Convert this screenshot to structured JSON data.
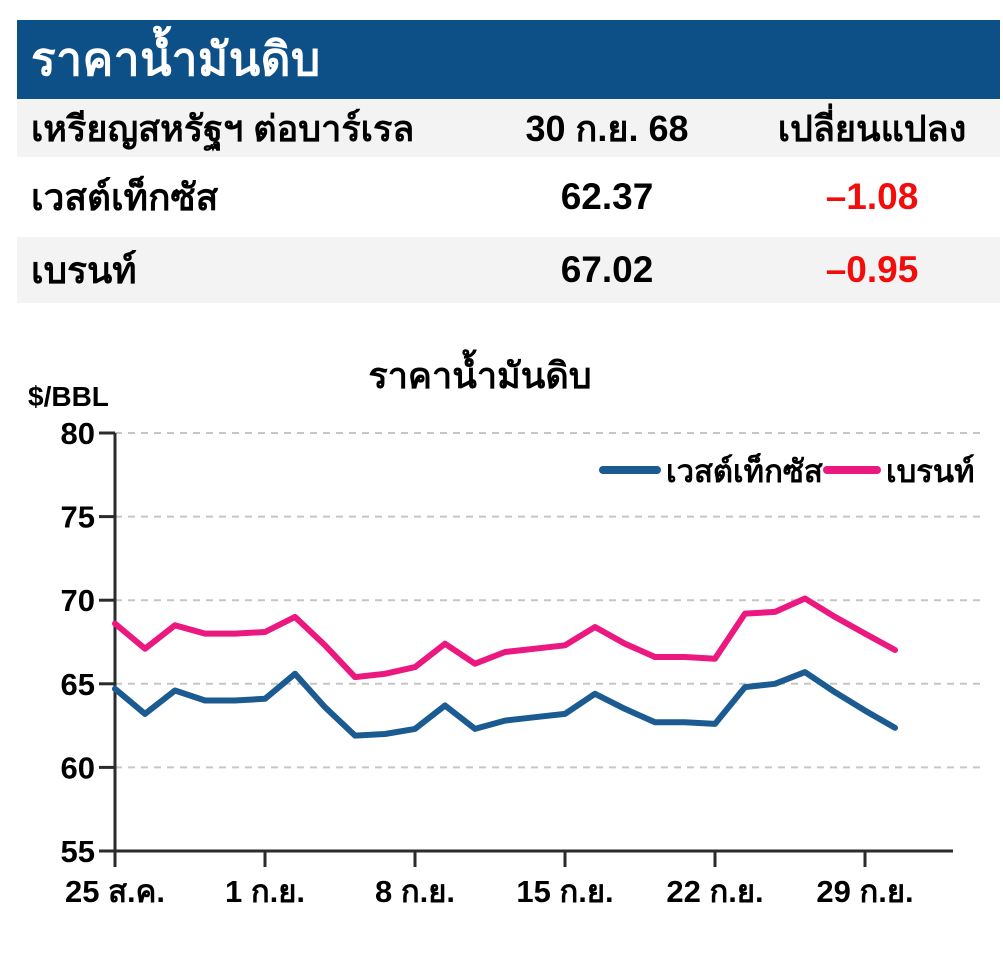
{
  "header": {
    "title": "ราคาน้ำมันดิบ",
    "bg": "#0D5088",
    "text_color": "#FFFFFF"
  },
  "table": {
    "stripe_bg": "#F3F3F3",
    "negative_color": "#F20D0D",
    "header": {
      "unit_label": "เหรียญสหรัฐฯ ต่อบาร์เรล",
      "date_label": "30 ก.ย. 68",
      "change_label": "เปลี่ยนแปลง"
    },
    "rows": [
      {
        "name": "เวสต์เท็กซัส",
        "price": "62.37",
        "change": "–1.08"
      },
      {
        "name": "เบรนท์",
        "price": "67.02",
        "change": "–0.95"
      }
    ]
  },
  "chart_data": {
    "type": "line",
    "title": "ราคาน้ำมันดิบ",
    "ylabel": "$/BBL",
    "ylim": [
      55,
      80
    ],
    "yticks": [
      80,
      75,
      70,
      65,
      60,
      55
    ],
    "grid": "horizontal-dashed",
    "legend_position": "top-right",
    "xtick_labels": [
      "25 ส.ค.",
      "1 ก.ย.",
      "8 ก.ย.",
      "15 ก.ย.",
      "22 ก.ย.",
      "29 ก.ย."
    ],
    "xtick_indices": [
      0,
      5,
      10,
      15,
      20,
      25
    ],
    "x": [
      "25 ส.ค.",
      "26 ส.ค.",
      "27 ส.ค.",
      "28 ส.ค.",
      "29 ส.ค.",
      "1 ก.ย.",
      "2 ก.ย.",
      "3 ก.ย.",
      "4 ก.ย.",
      "5 ก.ย.",
      "8 ก.ย.",
      "9 ก.ย.",
      "10 ก.ย.",
      "11 ก.ย.",
      "12 ก.ย.",
      "15 ก.ย.",
      "16 ก.ย.",
      "17 ก.ย.",
      "18 ก.ย.",
      "19 ก.ย.",
      "22 ก.ย.",
      "23 ก.ย.",
      "24 ก.ย.",
      "25 ก.ย.",
      "26 ก.ย.",
      "29 ก.ย.",
      "30 ก.ย."
    ],
    "series": [
      {
        "name": "เวสต์เท็กซัส",
        "color": "#1B5B92",
        "values": [
          64.7,
          63.2,
          64.6,
          64.0,
          64.0,
          64.1,
          65.6,
          63.6,
          61.9,
          62.0,
          62.3,
          63.7,
          62.3,
          62.8,
          63.0,
          63.2,
          64.4,
          63.5,
          62.7,
          62.7,
          62.6,
          64.8,
          65.0,
          65.7,
          64.5,
          63.4,
          62.37
        ]
      },
      {
        "name": "เบรนท์",
        "color": "#EB187F",
        "values": [
          68.6,
          67.1,
          68.5,
          68.0,
          68.0,
          68.1,
          69.0,
          67.3,
          65.4,
          65.6,
          66.0,
          67.4,
          66.2,
          66.9,
          67.1,
          67.3,
          68.4,
          67.4,
          66.6,
          66.6,
          66.5,
          69.2,
          69.3,
          70.1,
          69.0,
          68.0,
          67.02
        ]
      }
    ]
  }
}
